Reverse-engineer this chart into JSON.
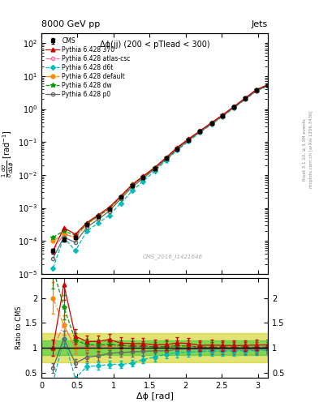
{
  "title": "8000 GeV pp",
  "title_right": "Jets",
  "annotation": "Δϕ(jj) (200 < pTlead < 300)",
  "watermark": "CMS_2016_I1421646",
  "right_label_top": "Rivet 3.1.10, ≥ 3.3M events",
  "right_label_bot": "mcplots.cern.ch [arXiv:1306.3436]",
  "xlabel": "Δϕ [rad]",
  "ylabel": "$\\frac{1}{\\sigma}\\frac{d\\sigma}{d\\Delta\\phi}$ [rad$^{-1}$]",
  "ylabel_ratio": "Ratio to CMS",
  "xlim": [
    0.0,
    3.14159
  ],
  "ylim_main": [
    1e-05,
    200.0
  ],
  "ylim_ratio": [
    0.4,
    2.4
  ],
  "dphi_x": [
    0.16,
    0.31,
    0.47,
    0.63,
    0.79,
    0.94,
    1.1,
    1.26,
    1.41,
    1.57,
    1.73,
    1.88,
    2.04,
    2.2,
    2.36,
    2.51,
    2.67,
    2.83,
    2.98,
    3.14
  ],
  "cms_y": [
    5e-05,
    0.00011,
    0.00013,
    0.00032,
    0.00055,
    0.0009,
    0.0021,
    0.0048,
    0.0085,
    0.016,
    0.032,
    0.062,
    0.115,
    0.21,
    0.37,
    0.63,
    1.15,
    2.1,
    3.7,
    5.2
  ],
  "cms_yerr": [
    8e-06,
    1.5e-05,
    1.5e-05,
    3.5e-05,
    6e-05,
    9e-05,
    0.00021,
    0.00048,
    0.00085,
    0.0016,
    0.0032,
    0.0062,
    0.012,
    0.021,
    0.037,
    0.063,
    0.12,
    0.21,
    0.37,
    0.52
  ],
  "py370_y": [
    5e-05,
    0.00025,
    0.00016,
    0.00036,
    0.00062,
    0.00105,
    0.0023,
    0.0052,
    0.0092,
    0.017,
    0.034,
    0.068,
    0.125,
    0.22,
    0.39,
    0.66,
    1.2,
    2.2,
    3.9,
    5.5
  ],
  "py_atlas_y": [
    5e-05,
    0.00016,
    0.00013,
    0.00033,
    0.00057,
    0.00095,
    0.0022,
    0.005,
    0.0088,
    0.0165,
    0.033,
    0.065,
    0.12,
    0.215,
    0.375,
    0.64,
    1.17,
    2.12,
    3.75,
    5.3
  ],
  "py_d6t_y": [
    1.5e-05,
    0.00013,
    5e-05,
    0.0002,
    0.00035,
    0.0006,
    0.0014,
    0.0033,
    0.0065,
    0.013,
    0.028,
    0.056,
    0.105,
    0.195,
    0.345,
    0.59,
    1.08,
    1.98,
    3.5,
    4.95
  ],
  "py_default_y": [
    0.0001,
    0.00016,
    0.00013,
    0.00032,
    0.00055,
    0.00092,
    0.00215,
    0.0049,
    0.0087,
    0.0162,
    0.0325,
    0.064,
    0.118,
    0.212,
    0.372,
    0.635,
    1.16,
    2.11,
    3.72,
    5.25
  ],
  "py_dw_y": [
    0.00013,
    0.0002,
    0.00015,
    0.00034,
    0.00058,
    0.00096,
    0.0022,
    0.00495,
    0.0088,
    0.0163,
    0.0328,
    0.0645,
    0.119,
    0.213,
    0.373,
    0.638,
    1.16,
    2.13,
    3.73,
    5.26
  ],
  "py_p0_y": [
    3e-05,
    0.00013,
    9e-05,
    0.00026,
    0.00046,
    0.0008,
    0.0019,
    0.0044,
    0.0079,
    0.015,
    0.03,
    0.06,
    0.112,
    0.204,
    0.36,
    0.615,
    1.12,
    2.04,
    3.6,
    5.1
  ],
  "color_cms": "#000000",
  "color_370": "#cc0000",
  "color_atlas": "#ff6699",
  "color_d6t": "#00bbbb",
  "color_default": "#ff8800",
  "color_dw": "#009900",
  "color_p0": "#666666",
  "band_green": "#33cc33",
  "band_yellow": "#cccc00",
  "legend_entries": [
    "CMS",
    "Pythia 6.428 370",
    "Pythia 6.428 atlas-csc",
    "Pythia 6.428 d6t",
    "Pythia 6.428 default",
    "Pythia 6.428 dw",
    "Pythia 6.428 p0"
  ]
}
